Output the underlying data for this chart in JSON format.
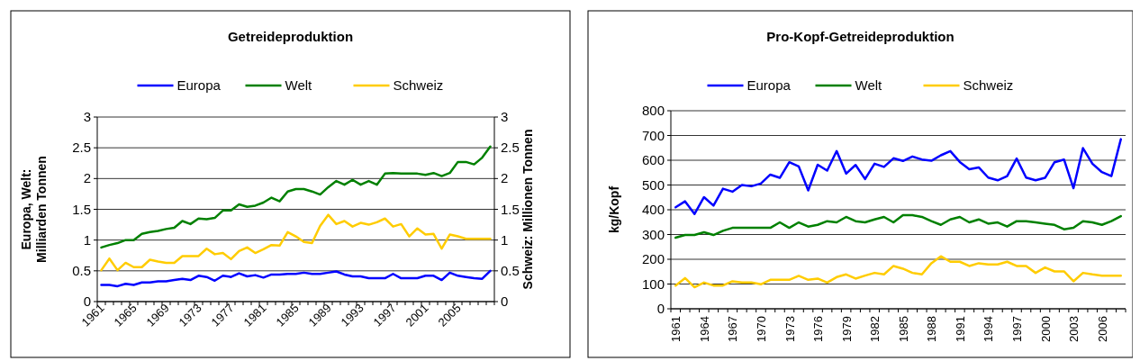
{
  "chart_data": [
    {
      "type": "line",
      "title": "Getreideproduktion",
      "ylabel": "Europa, Welt: Milliarden Tonnen",
      "y2label": "Schweiz: Millionen Tonnen",
      "categories": [
        "1961",
        null,
        null,
        null,
        "1965",
        null,
        null,
        null,
        "1969",
        null,
        null,
        null,
        "1973",
        null,
        null,
        null,
        "1977",
        null,
        null,
        null,
        "1981",
        null,
        null,
        null,
        "1985",
        null,
        null,
        null,
        "1989",
        null,
        null,
        null,
        "1993",
        null,
        null,
        null,
        "1997",
        null,
        null,
        null,
        "2001",
        null,
        null,
        null,
        "2005",
        null,
        null,
        null,
        null
      ],
      "series": [
        {
          "name": "Europa",
          "color": "#0000ff",
          "values": [
            0.27,
            0.27,
            0.25,
            0.29,
            0.27,
            0.31,
            0.31,
            0.33,
            0.33,
            0.35,
            0.37,
            0.35,
            0.42,
            0.4,
            0.34,
            0.42,
            0.4,
            0.46,
            0.41,
            0.43,
            0.39,
            0.44,
            0.44,
            0.45,
            0.45,
            0.47,
            0.45,
            0.45,
            0.47,
            0.49,
            0.44,
            0.41,
            0.41,
            0.38,
            0.38,
            0.38,
            0.45,
            0.38,
            0.38,
            0.38,
            0.42,
            0.42,
            0.35,
            0.47,
            0.42,
            0.4,
            0.38,
            0.37,
            0.5
          ]
        },
        {
          "name": "Welt",
          "color": "#008000",
          "values": [
            0.88,
            0.92,
            0.95,
            1.0,
            1.0,
            1.1,
            1.13,
            1.15,
            1.18,
            1.2,
            1.31,
            1.26,
            1.35,
            1.34,
            1.36,
            1.48,
            1.48,
            1.58,
            1.54,
            1.56,
            1.61,
            1.69,
            1.63,
            1.79,
            1.83,
            1.83,
            1.79,
            1.74,
            1.86,
            1.96,
            1.9,
            1.98,
            1.9,
            1.96,
            1.9,
            2.08,
            2.09,
            2.08,
            2.08,
            2.08,
            2.06,
            2.09,
            2.04,
            2.09,
            2.27,
            2.27,
            2.23,
            2.34,
            2.52
          ]
        },
        {
          "name": "Schweiz",
          "color": "#ffcc00",
          "axis": "y2",
          "values": [
            0.51,
            0.7,
            0.51,
            0.63,
            0.56,
            0.56,
            0.68,
            0.65,
            0.63,
            0.63,
            0.74,
            0.74,
            0.74,
            0.86,
            0.77,
            0.79,
            0.69,
            0.82,
            0.88,
            0.79,
            0.85,
            0.92,
            0.91,
            1.13,
            1.06,
            0.97,
            0.95,
            1.23,
            1.41,
            1.26,
            1.31,
            1.22,
            1.28,
            1.25,
            1.29,
            1.35,
            1.22,
            1.26,
            1.06,
            1.19,
            1.09,
            1.1,
            0.86,
            1.09,
            1.06,
            1.02,
            1.02,
            1.02,
            1.02
          ]
        }
      ],
      "ylim": [
        0,
        3
      ],
      "yticks": [
        0,
        0.5,
        1,
        1.5,
        2,
        2.5,
        3
      ],
      "y2lim": [
        0,
        3
      ],
      "y2ticks": [
        0,
        0.5,
        1,
        1.5,
        2,
        2.5,
        3
      ],
      "grid": "y",
      "legend": "top"
    },
    {
      "type": "line",
      "title": "Pro-Kopf-Getreideproduktion",
      "ylabel": "kg/Kopf",
      "categories": [
        "1961",
        null,
        null,
        "1964",
        null,
        null,
        "1967",
        null,
        null,
        "1970",
        null,
        null,
        "1973",
        null,
        null,
        "1976",
        null,
        null,
        "1979",
        null,
        null,
        "1982",
        null,
        null,
        "1985",
        null,
        null,
        "1988",
        null,
        null,
        "1991",
        null,
        null,
        "1994",
        null,
        null,
        "1997",
        null,
        null,
        "2000",
        null,
        null,
        "2003",
        null,
        null,
        "2006",
        null,
        null
      ],
      "series": [
        {
          "name": "Europa",
          "color": "#0000ff",
          "values": [
            410,
            434,
            383,
            451,
            417,
            485,
            473,
            500,
            495,
            506,
            542,
            529,
            592,
            575,
            478,
            582,
            558,
            637,
            546,
            581,
            524,
            586,
            573,
            608,
            597,
            615,
            603,
            598,
            620,
            637,
            593,
            564,
            571,
            530,
            519,
            536,
            607,
            530,
            519,
            529,
            592,
            603,
            487,
            649,
            586,
            552,
            536,
            685
          ]
        },
        {
          "name": "Welt",
          "color": "#008000",
          "values": [
            287,
            298,
            298,
            309,
            298,
            315,
            327,
            327,
            327,
            327,
            327,
            349,
            327,
            349,
            332,
            339,
            354,
            349,
            371,
            354,
            349,
            361,
            371,
            349,
            378,
            378,
            371,
            354,
            339,
            361,
            371,
            349,
            361,
            344,
            349,
            332,
            354,
            354,
            349,
            344,
            339,
            321,
            327,
            354,
            349,
            339,
            354,
            374
          ]
        },
        {
          "name": "Schweiz",
          "color": "#ffcc00",
          "values": [
            94,
            124,
            87,
            106,
            94,
            94,
            111,
            106,
            106,
            99,
            117,
            117,
            117,
            133,
            117,
            122,
            106,
            128,
            139,
            122,
            134,
            145,
            139,
            173,
            162,
            145,
            139,
            184,
            212,
            190,
            190,
            173,
            184,
            179,
            179,
            190,
            173,
            173,
            145,
            167,
            151,
            151,
            111,
            145,
            139,
            134,
            134,
            134
          ]
        }
      ],
      "ylim": [
        0,
        800
      ],
      "yticks": [
        0,
        100,
        200,
        300,
        400,
        500,
        600,
        700,
        800
      ],
      "grid": "y",
      "legend": "top"
    }
  ]
}
